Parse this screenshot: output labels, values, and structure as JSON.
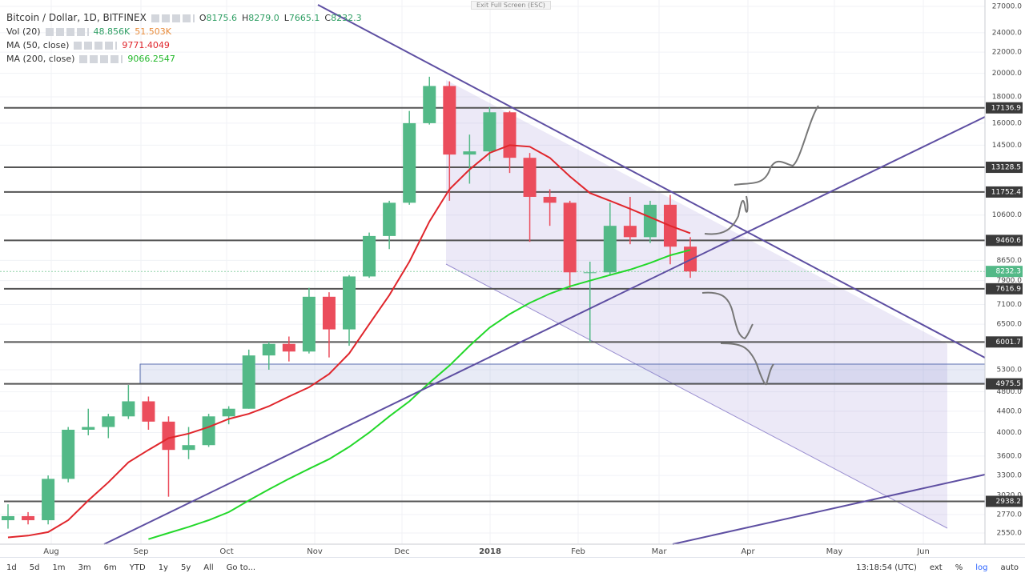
{
  "fullscreen_hint": "Exit Full Screen (ESC)",
  "header": {
    "symbol": "Bitcoin / Dollar, 1D, BITFINEX",
    "ohlc": [
      {
        "key": "O",
        "value": "8175.6"
      },
      {
        "key": "H",
        "value": "8279.0"
      },
      {
        "key": "L",
        "value": "7665.1"
      },
      {
        "key": "C",
        "value": "8232.3"
      }
    ],
    "indicators": [
      {
        "name": "Vol (20)",
        "values": [
          "48.856K",
          "51.503K"
        ]
      },
      {
        "name": "MA (50, close)",
        "values": [
          "9771.4049"
        ]
      },
      {
        "name": "MA (200, close)",
        "values": [
          "9066.2547"
        ]
      }
    ]
  },
  "chart": {
    "log_scale": true,
    "ylim": [
      2425,
      27000
    ],
    "candles": [
      [
        2700,
        2900,
        2600,
        2750
      ],
      [
        2750,
        2800,
        2650,
        2700
      ],
      [
        2700,
        3300,
        2650,
        3250
      ],
      [
        3250,
        4100,
        3200,
        4050
      ],
      [
        4050,
        4450,
        3950,
        4100
      ],
      [
        4100,
        4350,
        3900,
        4300
      ],
      [
        4300,
        4950,
        4250,
        4600
      ],
      [
        4600,
        4700,
        4050,
        4200
      ],
      [
        4200,
        4300,
        3000,
        3700
      ],
      [
        3700,
        4100,
        3550,
        3780
      ],
      [
        3780,
        4350,
        3750,
        4300
      ],
      [
        4300,
        4500,
        4150,
        4450
      ],
      [
        4450,
        5800,
        4450,
        5650
      ],
      [
        5650,
        6000,
        5300,
        5950
      ],
      [
        5950,
        6150,
        5500,
        5750
      ],
      [
        5750,
        7650,
        5700,
        7350
      ],
      [
        7350,
        7500,
        5600,
        6350
      ],
      [
        6350,
        8100,
        5900,
        8050
      ],
      [
        8050,
        9800,
        8000,
        9650
      ],
      [
        9650,
        11300,
        9100,
        11200
      ],
      [
        11200,
        16900,
        11100,
        16000
      ],
      [
        16000,
        19700,
        15900,
        18900
      ],
      [
        18900,
        19300,
        11300,
        13900
      ],
      [
        13900,
        15200,
        12200,
        14100
      ],
      [
        14100,
        17200,
        13500,
        16800
      ],
      [
        16800,
        16900,
        12800,
        13700
      ],
      [
        13700,
        14000,
        9400,
        11500
      ],
      [
        11500,
        11900,
        10100,
        11200
      ],
      [
        11200,
        11300,
        7600,
        8200
      ],
      [
        8200,
        8600,
        6000,
        8200
      ],
      [
        8200,
        11200,
        8100,
        10100
      ],
      [
        10100,
        11500,
        9300,
        9600
      ],
      [
        9600,
        11300,
        9350,
        11100
      ],
      [
        11100,
        11600,
        8500,
        9200
      ],
      [
        9200,
        9600,
        8000,
        8232.3
      ]
    ],
    "ma50": [
      2500,
      2520,
      2560,
      2700,
      2950,
      3200,
      3500,
      3700,
      3900,
      3980,
      4100,
      4250,
      4350,
      4500,
      4700,
      4900,
      5200,
      5700,
      6500,
      7400,
      8600,
      10300,
      11900,
      13000,
      14000,
      14500,
      14400,
      13700,
      12600,
      11700,
      11300,
      10900,
      10500,
      10100,
      9771.4
    ],
    "ma200": [
      null,
      null,
      null,
      null,
      null,
      null,
      null,
      2480,
      2550,
      2620,
      2700,
      2800,
      2950,
      3100,
      3250,
      3400,
      3550,
      3750,
      4000,
      4300,
      4600,
      5000,
      5400,
      5900,
      6400,
      6800,
      7150,
      7450,
      7700,
      7900,
      8100,
      8300,
      8550,
      8850,
      9066.25
    ],
    "price_ticks": [
      {
        "value": 27000,
        "label": "27000.0"
      },
      {
        "value": 24000,
        "label": "24000.0"
      },
      {
        "value": 22000,
        "label": "22000.0"
      },
      {
        "value": 20000,
        "label": "20000.0"
      },
      {
        "value": 18000,
        "label": "18000.0"
      },
      {
        "value": 16000,
        "label": "16000.0"
      },
      {
        "value": 14500,
        "label": "14500.0"
      },
      {
        "value": 10600,
        "label": "10600.0"
      },
      {
        "value": 8650,
        "label": "8650.0"
      },
      {
        "value": 7900,
        "label": "7900.0"
      },
      {
        "value": 7100,
        "label": "7100.0"
      },
      {
        "value": 6500,
        "label": "6500.0"
      },
      {
        "value": 5300,
        "label": "5300.0"
      },
      {
        "value": 4800,
        "label": "4800.0"
      },
      {
        "value": 4400,
        "label": "4400.0"
      },
      {
        "value": 4000,
        "label": "4000.0"
      },
      {
        "value": 3600,
        "label": "3600.0"
      },
      {
        "value": 3300,
        "label": "3300.0"
      },
      {
        "value": 3020,
        "label": "3020.0"
      },
      {
        "value": 2770,
        "label": "2770.0"
      },
      {
        "value": 2550,
        "label": "2550.0"
      }
    ],
    "levels": [
      {
        "value": 17136.9,
        "label": "17136.9"
      },
      {
        "value": 13128.5,
        "label": "13128.5"
      },
      {
        "value": 11752.4,
        "label": "11752.4"
      },
      {
        "value": 9460.6,
        "label": "9460.6"
      },
      {
        "value": 7616.9,
        "label": "7616.9"
      },
      {
        "value": 6001.7,
        "label": "6001.7"
      },
      {
        "value": 4975.5,
        "label": "4975.5"
      },
      {
        "value": 2938.2,
        "label": "2938.2"
      }
    ],
    "last_price": {
      "value": 8232.3,
      "label": "8232.3"
    },
    "time_labels": [
      "Aug",
      "Sep",
      "Oct",
      "Nov",
      "Dec",
      "2018",
      "Feb",
      "Mar",
      "Apr",
      "May",
      "Jun"
    ]
  },
  "toolbar": {
    "ranges": [
      "1d",
      "5d",
      "1m",
      "3m",
      "6m",
      "YTD",
      "1y",
      "5y",
      "All"
    ],
    "goto": "Go to...",
    "clock": "13:18:54 (UTC)",
    "options": [
      "ext",
      "%",
      "log",
      "auto"
    ]
  }
}
